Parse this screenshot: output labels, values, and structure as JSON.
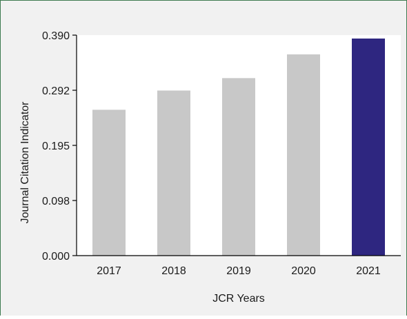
{
  "chart_data": {
    "type": "bar",
    "title": "",
    "xlabel": "JCR Years",
    "ylabel": "Journal Citation Indicator",
    "categories": [
      "2017",
      "2018",
      "2019",
      "2020",
      "2021"
    ],
    "values": [
      0.258,
      0.292,
      0.314,
      0.356,
      0.384
    ],
    "ylim": [
      0,
      0.39
    ],
    "yticks": [
      0,
      0.0975,
      0.195,
      0.2925,
      0.39
    ],
    "ytick_labels": [
      "0.000",
      "0.098",
      "0.195",
      "0.292",
      "0.390"
    ],
    "grid": false,
    "legend": "none",
    "colors": {
      "default_bar": "#c8c8c8",
      "highlight_bar": "#2e2680",
      "plot_background": "#ffffff",
      "figure_background": "#f1f1f1",
      "frame_border": "#3d7a4f"
    },
    "highlight_index": 4
  }
}
